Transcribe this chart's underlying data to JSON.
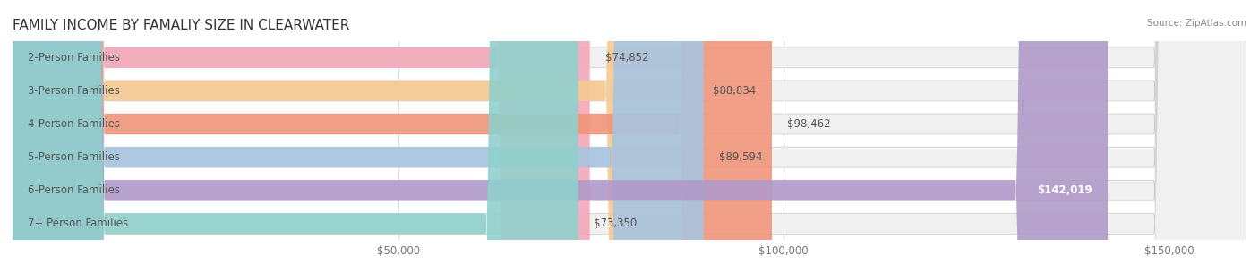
{
  "title": "FAMILY INCOME BY FAMALIY SIZE IN CLEARWATER",
  "source": "Source: ZipAtlas.com",
  "categories": [
    "2-Person Families",
    "3-Person Families",
    "4-Person Families",
    "5-Person Families",
    "6-Person Families",
    "7+ Person Families"
  ],
  "values": [
    74852,
    88834,
    98462,
    89594,
    142019,
    73350
  ],
  "labels": [
    "$74,852",
    "$88,834",
    "$98,462",
    "$89,594",
    "$142,019",
    "$73,350"
  ],
  "bar_colors": [
    "#f4a7b9",
    "#f5c992",
    "#f0957a",
    "#a8c4e0",
    "#b09ac8",
    "#90d0cc"
  ],
  "bar_bg_color": "#f0f0f0",
  "xlim": [
    0,
    160000
  ],
  "xticks": [
    0,
    50000,
    100000,
    150000
  ],
  "xticklabels": [
    "",
    "$50,000",
    "$100,000",
    "$150,000"
  ],
  "fig_bg_color": "#ffffff",
  "title_fontsize": 11,
  "label_fontsize": 8.5,
  "tick_fontsize": 8.5,
  "bar_height": 0.62,
  "label_color": "#555555",
  "title_color": "#333333"
}
